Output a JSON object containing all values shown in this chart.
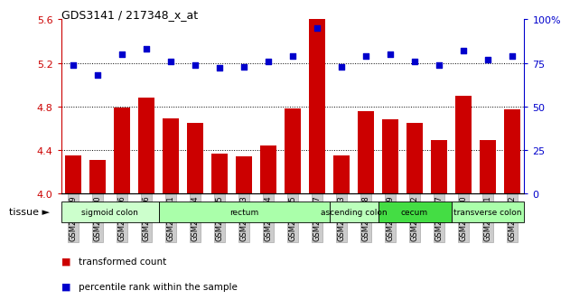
{
  "title": "GDS3141 / 217348_x_at",
  "samples": [
    "GSM234909",
    "GSM234910",
    "GSM234916",
    "GSM234926",
    "GSM234911",
    "GSM234914",
    "GSM234915",
    "GSM234923",
    "GSM234924",
    "GSM234925",
    "GSM234927",
    "GSM234913",
    "GSM234918",
    "GSM234919",
    "GSM234912",
    "GSM234917",
    "GSM234920",
    "GSM234921",
    "GSM234922"
  ],
  "bar_values": [
    4.35,
    4.31,
    4.79,
    4.88,
    4.69,
    4.65,
    4.37,
    4.34,
    4.44,
    4.78,
    5.6,
    4.35,
    4.76,
    4.68,
    4.65,
    4.49,
    4.9,
    4.49,
    4.77
  ],
  "dot_values": [
    74,
    68,
    80,
    83,
    76,
    74,
    72,
    73,
    76,
    79,
    95,
    73,
    79,
    80,
    76,
    74,
    82,
    77,
    79
  ],
  "bar_color": "#cc0000",
  "dot_color": "#0000cc",
  "ymin": 4.0,
  "ymax": 5.6,
  "yticks": [
    4.0,
    4.4,
    4.8,
    5.2,
    5.6
  ],
  "y2min": 0,
  "y2max": 100,
  "y2ticks": [
    0,
    25,
    50,
    75,
    100
  ],
  "y2ticklabels": [
    "0",
    "25",
    "50",
    "75",
    "100%"
  ],
  "dotted_lines": [
    4.4,
    4.8,
    5.2
  ],
  "tissue_groups": [
    {
      "label": "sigmoid colon",
      "start": 0,
      "end": 4,
      "color": "#ccffcc"
    },
    {
      "label": "rectum",
      "start": 4,
      "end": 11,
      "color": "#aaffaa"
    },
    {
      "label": "ascending colon",
      "start": 11,
      "end": 13,
      "color": "#bbffbb"
    },
    {
      "label": "cecum",
      "start": 13,
      "end": 16,
      "color": "#44dd44"
    },
    {
      "label": "transverse colon",
      "start": 16,
      "end": 19,
      "color": "#aaffaa"
    }
  ],
  "tissue_label": "tissue",
  "legend_bar": "transformed count",
  "legend_dot": "percentile rank within the sample",
  "bg_color": "#ffffff",
  "tick_label_bg": "#cccccc"
}
